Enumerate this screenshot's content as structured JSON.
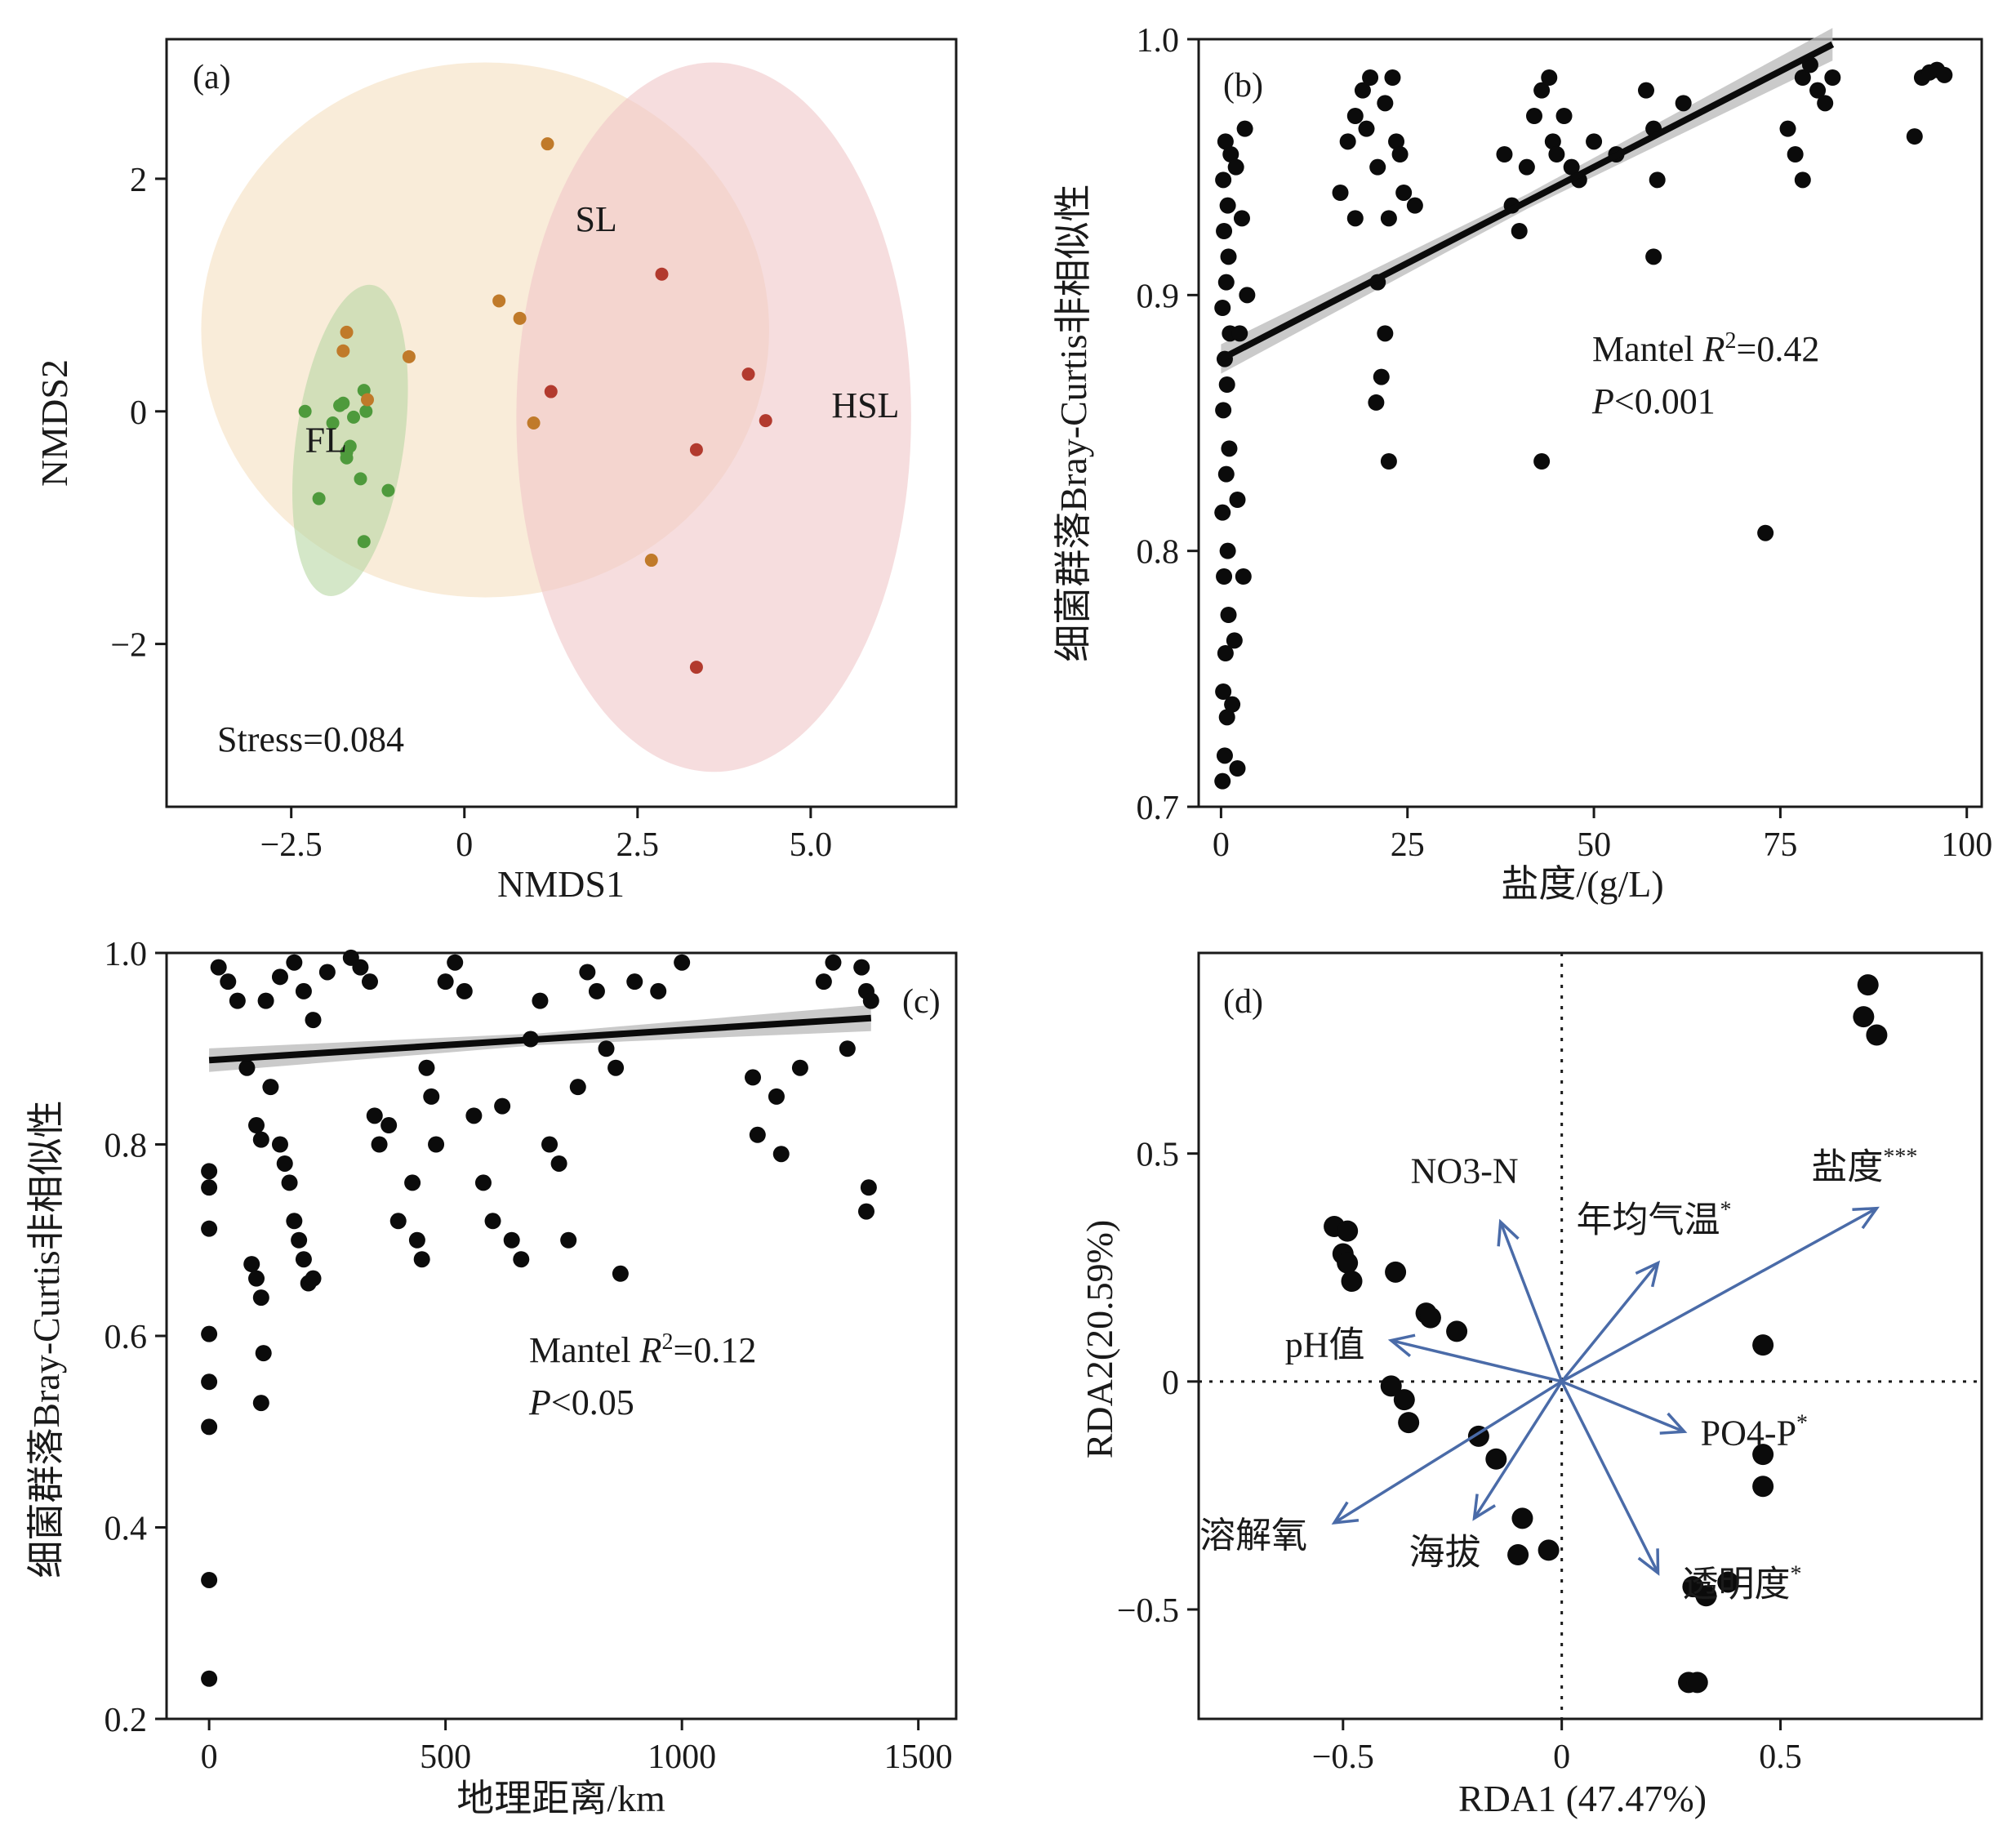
{
  "chart_data": [
    {
      "panel": "(a)",
      "type": "scatter",
      "xlabel": "NMDS1",
      "ylabel": "NMDS2",
      "xlim": [
        -4.3,
        7.1
      ],
      "ylim": [
        -3.4,
        3.2
      ],
      "xticks": [
        -2.5,
        0,
        2.5,
        5.0
      ],
      "xtick_labels": [
        "−2.5",
        "0",
        "2.5",
        "5.0"
      ],
      "yticks": [
        2,
        0,
        -2
      ],
      "ytick_labels": [
        "2",
        "0",
        "−2"
      ],
      "annotation": "Stress=0.084",
      "groups": [
        {
          "name": "FL",
          "color": "#4e9a3c",
          "ellipse_color": "#b7d7a4",
          "label_pos": [
            -2.3,
            -0.35
          ],
          "ellipse": {
            "cx": -1.65,
            "cy": -0.25,
            "rx": 0.78,
            "ry": 1.35,
            "angle": 8
          },
          "points": [
            [
              -2.3,
              0.0
            ],
            [
              -2.1,
              -0.75
            ],
            [
              -1.9,
              -0.1
            ],
            [
              -1.75,
              0.07
            ],
            [
              -1.8,
              0.05
            ],
            [
              -1.7,
              -0.35
            ],
            [
              -1.65,
              -0.3
            ],
            [
              -1.6,
              -0.05
            ],
            [
              -1.5,
              -0.58
            ],
            [
              -1.45,
              0.18
            ],
            [
              -1.42,
              0.0
            ],
            [
              -1.1,
              -0.68
            ],
            [
              -1.45,
              -1.12
            ],
            [
              -1.7,
              -0.4
            ]
          ]
        },
        {
          "name": "SL",
          "color": "#c07a2a",
          "ellipse_color": "#f5dfc0",
          "label_pos": [
            1.6,
            1.55
          ],
          "ellipse": {
            "cx": 0.3,
            "cy": 0.7,
            "rx": 4.1,
            "ry": 2.3,
            "angle": 0
          },
          "points": [
            [
              1.2,
              2.3
            ],
            [
              -1.7,
              0.68
            ],
            [
              -1.75,
              0.52
            ],
            [
              -0.8,
              0.47
            ],
            [
              -1.4,
              0.1
            ],
            [
              0.5,
              0.95
            ],
            [
              0.8,
              0.8
            ],
            [
              1.0,
              -0.1
            ],
            [
              2.7,
              -1.28
            ]
          ]
        },
        {
          "name": "HSL",
          "color": "#b23a2e",
          "ellipse_color": "#f0c6c8",
          "label_pos": [
            5.3,
            -0.05
          ],
          "ellipse": {
            "cx": 3.6,
            "cy": -0.05,
            "rx": 2.85,
            "ry": 3.05,
            "angle": 0
          },
          "points": [
            [
              2.85,
              1.18
            ],
            [
              4.1,
              0.32
            ],
            [
              4.35,
              -0.08
            ],
            [
              1.25,
              0.17
            ],
            [
              3.35,
              -0.33
            ],
            [
              3.35,
              -2.2
            ]
          ]
        }
      ]
    },
    {
      "panel": "(b)",
      "type": "scatter",
      "xlabel": "盐度/(g/L)",
      "ylabel": "细菌群落Bray-Curtis非相似性",
      "xlim": [
        -3,
        102
      ],
      "ylim": [
        0.7,
        1.0
      ],
      "xticks": [
        0,
        25,
        50,
        75,
        100
      ],
      "xtick_labels": [
        "0",
        "25",
        "50",
        "75",
        "100"
      ],
      "yticks": [
        0.7,
        0.8,
        0.9,
        1.0
      ],
      "ytick_labels": [
        "0.7",
        "0.8",
        "0.9",
        "1.0"
      ],
      "annotation_line1_prefix": "Mantel ",
      "annotation_line1_italic": "R",
      "annotation_line1_sup": "2",
      "annotation_line1_suffix": "=0.42",
      "annotation_line2_italic": "P",
      "annotation_line2_suffix": "<0.001",
      "fit": {
        "x0": 0,
        "y0": 0.875,
        "x1": 82,
        "y1": 0.998
      },
      "points": [
        [
          0.2,
          0.71
        ],
        [
          0.5,
          0.72
        ],
        [
          0.8,
          0.735
        ],
        [
          0.3,
          0.745
        ],
        [
          0.6,
          0.76
        ],
        [
          1.0,
          0.775
        ],
        [
          0.4,
          0.79
        ],
        [
          0.9,
          0.8
        ],
        [
          0.2,
          0.815
        ],
        [
          0.7,
          0.83
        ],
        [
          1.1,
          0.84
        ],
        [
          0.3,
          0.855
        ],
        [
          0.8,
          0.865
        ],
        [
          0.5,
          0.875
        ],
        [
          1.2,
          0.885
        ],
        [
          0.2,
          0.895
        ],
        [
          0.7,
          0.905
        ],
        [
          1.0,
          0.915
        ],
        [
          0.4,
          0.925
        ],
        [
          0.9,
          0.935
        ],
        [
          0.3,
          0.945
        ],
        [
          1.3,
          0.955
        ],
        [
          0.6,
          0.96
        ],
        [
          2.0,
          0.95
        ],
        [
          2.8,
          0.93
        ],
        [
          3.2,
          0.965
        ],
        [
          2.5,
          0.885
        ],
        [
          3.5,
          0.9
        ],
        [
          2.2,
          0.82
        ],
        [
          3.0,
          0.79
        ],
        [
          1.8,
          0.765
        ],
        [
          1.5,
          0.74
        ],
        [
          2.2,
          0.715
        ],
        [
          16,
          0.94
        ],
        [
          17,
          0.96
        ],
        [
          18,
          0.97
        ],
        [
          19,
          0.98
        ],
        [
          20,
          0.985
        ],
        [
          19.5,
          0.965
        ],
        [
          21,
          0.95
        ],
        [
          22,
          0.975
        ],
        [
          23,
          0.985
        ],
        [
          23.5,
          0.96
        ],
        [
          24,
          0.955
        ],
        [
          24.5,
          0.94
        ],
        [
          22.5,
          0.93
        ],
        [
          21,
          0.905
        ],
        [
          22,
          0.885
        ],
        [
          21.5,
          0.868
        ],
        [
          20.8,
          0.858
        ],
        [
          22.5,
          0.835
        ],
        [
          26,
          0.935
        ],
        [
          18,
          0.93
        ],
        [
          38,
          0.955
        ],
        [
          39,
          0.935
        ],
        [
          40,
          0.925
        ],
        [
          41,
          0.95
        ],
        [
          42,
          0.97
        ],
        [
          43,
          0.98
        ],
        [
          44,
          0.985
        ],
        [
          44.5,
          0.96
        ],
        [
          45,
          0.955
        ],
        [
          46,
          0.97
        ],
        [
          47,
          0.95
        ],
        [
          48,
          0.945
        ],
        [
          43,
          0.835
        ],
        [
          50,
          0.96
        ],
        [
          53,
          0.955
        ],
        [
          57,
          0.98
        ],
        [
          58,
          0.965
        ],
        [
          58.5,
          0.945
        ],
        [
          58,
          0.915
        ],
        [
          62,
          0.975
        ],
        [
          73,
          0.807
        ],
        [
          76,
          0.965
        ],
        [
          77,
          0.955
        ],
        [
          78,
          0.945
        ],
        [
          78,
          0.985
        ],
        [
          79,
          0.99
        ],
        [
          80,
          0.98
        ],
        [
          81,
          0.975
        ],
        [
          82,
          0.985
        ],
        [
          93,
          0.962
        ],
        [
          94,
          0.985
        ],
        [
          95,
          0.987
        ],
        [
          96,
          0.988
        ],
        [
          97,
          0.986
        ]
      ]
    },
    {
      "panel": "(c)",
      "type": "scatter",
      "xlabel": "地理距离/km",
      "ylabel": "细菌群落Bray-Curtis非相似性",
      "xlim": [
        -90,
        1580
      ],
      "ylim": [
        0.2,
        1.0
      ],
      "xticks": [
        0,
        500,
        1000,
        1500
      ],
      "xtick_labels": [
        "0",
        "500",
        "1000",
        "1500"
      ],
      "yticks": [
        0.2,
        0.4,
        0.6,
        0.8,
        1.0
      ],
      "ytick_labels": [
        "0.2",
        "0.4",
        "0.6",
        "0.8",
        "1.0"
      ],
      "annotation_line1_prefix": "Mantel ",
      "annotation_line1_italic": "R",
      "annotation_line1_sup": "2",
      "annotation_line1_suffix": "=0.12",
      "annotation_line2_italic": "P",
      "annotation_line2_suffix": "<0.05",
      "fit": {
        "x0": 0,
        "y0": 0.888,
        "x1": 1400,
        "y1": 0.932
      },
      "points": [
        [
          0,
          0.242
        ],
        [
          0,
          0.345
        ],
        [
          0,
          0.505
        ],
        [
          0,
          0.552
        ],
        [
          0,
          0.602
        ],
        [
          0,
          0.712
        ],
        [
          0,
          0.755
        ],
        [
          0,
          0.772
        ],
        [
          20,
          0.985
        ],
        [
          40,
          0.97
        ],
        [
          60,
          0.95
        ],
        [
          80,
          0.88
        ],
        [
          100,
          0.82
        ],
        [
          110,
          0.805
        ],
        [
          90,
          0.675
        ],
        [
          100,
          0.66
        ],
        [
          110,
          0.64
        ],
        [
          115,
          0.582
        ],
        [
          110,
          0.53
        ],
        [
          130,
          0.86
        ],
        [
          150,
          0.8
        ],
        [
          160,
          0.78
        ],
        [
          170,
          0.76
        ],
        [
          180,
          0.72
        ],
        [
          190,
          0.7
        ],
        [
          200,
          0.68
        ],
        [
          210,
          0.655
        ],
        [
          220,
          0.66
        ],
        [
          120,
          0.95
        ],
        [
          150,
          0.975
        ],
        [
          180,
          0.99
        ],
        [
          200,
          0.96
        ],
        [
          220,
          0.93
        ],
        [
          250,
          0.98
        ],
        [
          300,
          0.995
        ],
        [
          320,
          0.985
        ],
        [
          340,
          0.97
        ],
        [
          350,
          0.83
        ],
        [
          360,
          0.8
        ],
        [
          380,
          0.82
        ],
        [
          400,
          0.72
        ],
        [
          430,
          0.76
        ],
        [
          440,
          0.7
        ],
        [
          450,
          0.68
        ],
        [
          460,
          0.88
        ],
        [
          470,
          0.85
        ],
        [
          480,
          0.8
        ],
        [
          500,
          0.97
        ],
        [
          520,
          0.99
        ],
        [
          540,
          0.96
        ],
        [
          560,
          0.83
        ],
        [
          580,
          0.76
        ],
        [
          600,
          0.72
        ],
        [
          620,
          0.84
        ],
        [
          640,
          0.7
        ],
        [
          660,
          0.68
        ],
        [
          680,
          0.91
        ],
        [
          700,
          0.95
        ],
        [
          720,
          0.8
        ],
        [
          740,
          0.78
        ],
        [
          760,
          0.7
        ],
        [
          780,
          0.86
        ],
        [
          800,
          0.98
        ],
        [
          820,
          0.96
        ],
        [
          840,
          0.9
        ],
        [
          860,
          0.88
        ],
        [
          870,
          0.665
        ],
        [
          900,
          0.97
        ],
        [
          950,
          0.96
        ],
        [
          1000,
          0.99
        ],
        [
          1150,
          0.87
        ],
        [
          1160,
          0.81
        ],
        [
          1200,
          0.85
        ],
        [
          1210,
          0.79
        ],
        [
          1250,
          0.88
        ],
        [
          1300,
          0.97
        ],
        [
          1320,
          0.99
        ],
        [
          1350,
          0.9
        ],
        [
          1380,
          0.985
        ],
        [
          1390,
          0.96
        ],
        [
          1400,
          0.95
        ],
        [
          1390,
          0.73
        ],
        [
          1395,
          0.755
        ]
      ]
    },
    {
      "panel": "(d)",
      "type": "scatter",
      "xlabel": "RDA1 (47.47%)",
      "ylabel": "RDA2(20.59%)",
      "xlim": [
        -0.83,
        0.96
      ],
      "ylim": [
        -0.74,
        0.94
      ],
      "xticks": [
        -0.5,
        0,
        0.5
      ],
      "xtick_labels": [
        "−0.5",
        "0",
        "0.5"
      ],
      "yticks": [
        0.5,
        0,
        -0.5
      ],
      "ytick_labels": [
        "0.5",
        "0",
        "−0.5"
      ],
      "points": [
        [
          0.7,
          0.87
        ],
        [
          0.69,
          0.8
        ],
        [
          0.72,
          0.76
        ],
        [
          -0.52,
          0.34
        ],
        [
          -0.49,
          0.33
        ],
        [
          -0.5,
          0.28
        ],
        [
          -0.49,
          0.26
        ],
        [
          -0.48,
          0.22
        ],
        [
          -0.38,
          0.24
        ],
        [
          -0.31,
          0.15
        ],
        [
          -0.3,
          0.14
        ],
        [
          -0.24,
          0.11
        ],
        [
          -0.39,
          -0.01
        ],
        [
          -0.36,
          -0.04
        ],
        [
          -0.35,
          -0.09
        ],
        [
          -0.19,
          -0.12
        ],
        [
          -0.15,
          -0.17
        ],
        [
          -0.09,
          -0.3
        ],
        [
          -0.1,
          -0.38
        ],
        [
          -0.03,
          -0.37
        ],
        [
          0.46,
          0.08
        ],
        [
          0.46,
          -0.16
        ],
        [
          0.46,
          -0.23
        ],
        [
          0.3,
          -0.45
        ],
        [
          0.33,
          -0.47
        ],
        [
          0.38,
          -0.44
        ],
        [
          0.29,
          -0.66
        ],
        [
          0.31,
          -0.66
        ]
      ],
      "vectors": [
        {
          "label": "盐度",
          "sup": "***",
          "x": 0.72,
          "y": 0.38
        },
        {
          "label": "年均气温",
          "sup": "*",
          "x": 0.22,
          "y": 0.26
        },
        {
          "label": "NO3-N",
          "sup": "",
          "x": -0.14,
          "y": 0.35
        },
        {
          "label": "pH值",
          "sup": "",
          "x": -0.39,
          "y": 0.09
        },
        {
          "label": "PO4-P",
          "sup": "*",
          "x": 0.28,
          "y": -0.11
        },
        {
          "label": "透明度",
          "sup": "*",
          "x": 0.22,
          "y": -0.42
        },
        {
          "label": "海拔",
          "sup": "",
          "x": -0.2,
          "y": -0.3
        },
        {
          "label": "溶解氧",
          "sup": "",
          "x": -0.52,
          "y": -0.31
        }
      ]
    }
  ]
}
